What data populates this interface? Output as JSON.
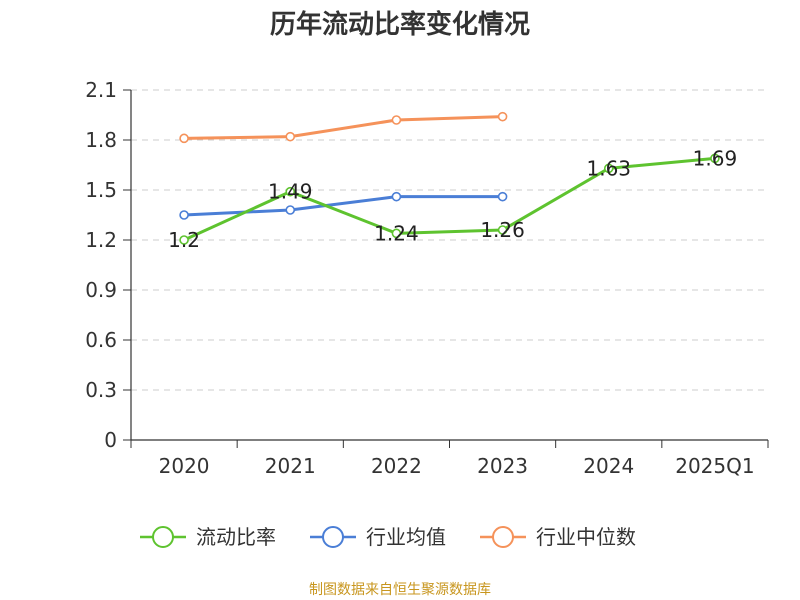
{
  "chart_data": {
    "type": "line",
    "title": "历年流动比率变化情况",
    "categories": [
      "2020",
      "2021",
      "2022",
      "2023",
      "2024",
      "2025Q1"
    ],
    "ylim": [
      0,
      2.1
    ],
    "yticks": [
      "0",
      "0.3",
      "0.6",
      "0.9",
      "1.2",
      "1.5",
      "1.8",
      "2.1"
    ],
    "grid": true,
    "legend_position": "bottom",
    "series": [
      {
        "name": "流动比率",
        "color": "#5ec32f",
        "values": [
          1.2,
          1.49,
          1.24,
          1.26,
          1.63,
          1.69
        ],
        "labels": [
          "1.2",
          "1.49",
          "1.24",
          "1.26",
          "1.63",
          "1.69"
        ],
        "show_labels": true
      },
      {
        "name": "行业均值",
        "color": "#4a7ed6",
        "values": [
          1.35,
          1.38,
          1.46,
          1.46,
          null,
          null
        ],
        "show_labels": false
      },
      {
        "name": "行业中位数",
        "color": "#f5925a",
        "values": [
          1.81,
          1.82,
          1.92,
          1.94,
          null,
          null
        ],
        "show_labels": false
      }
    ]
  },
  "source": {
    "text": "制图数据来自恒生聚源数据库",
    "color": "#c8961e"
  }
}
